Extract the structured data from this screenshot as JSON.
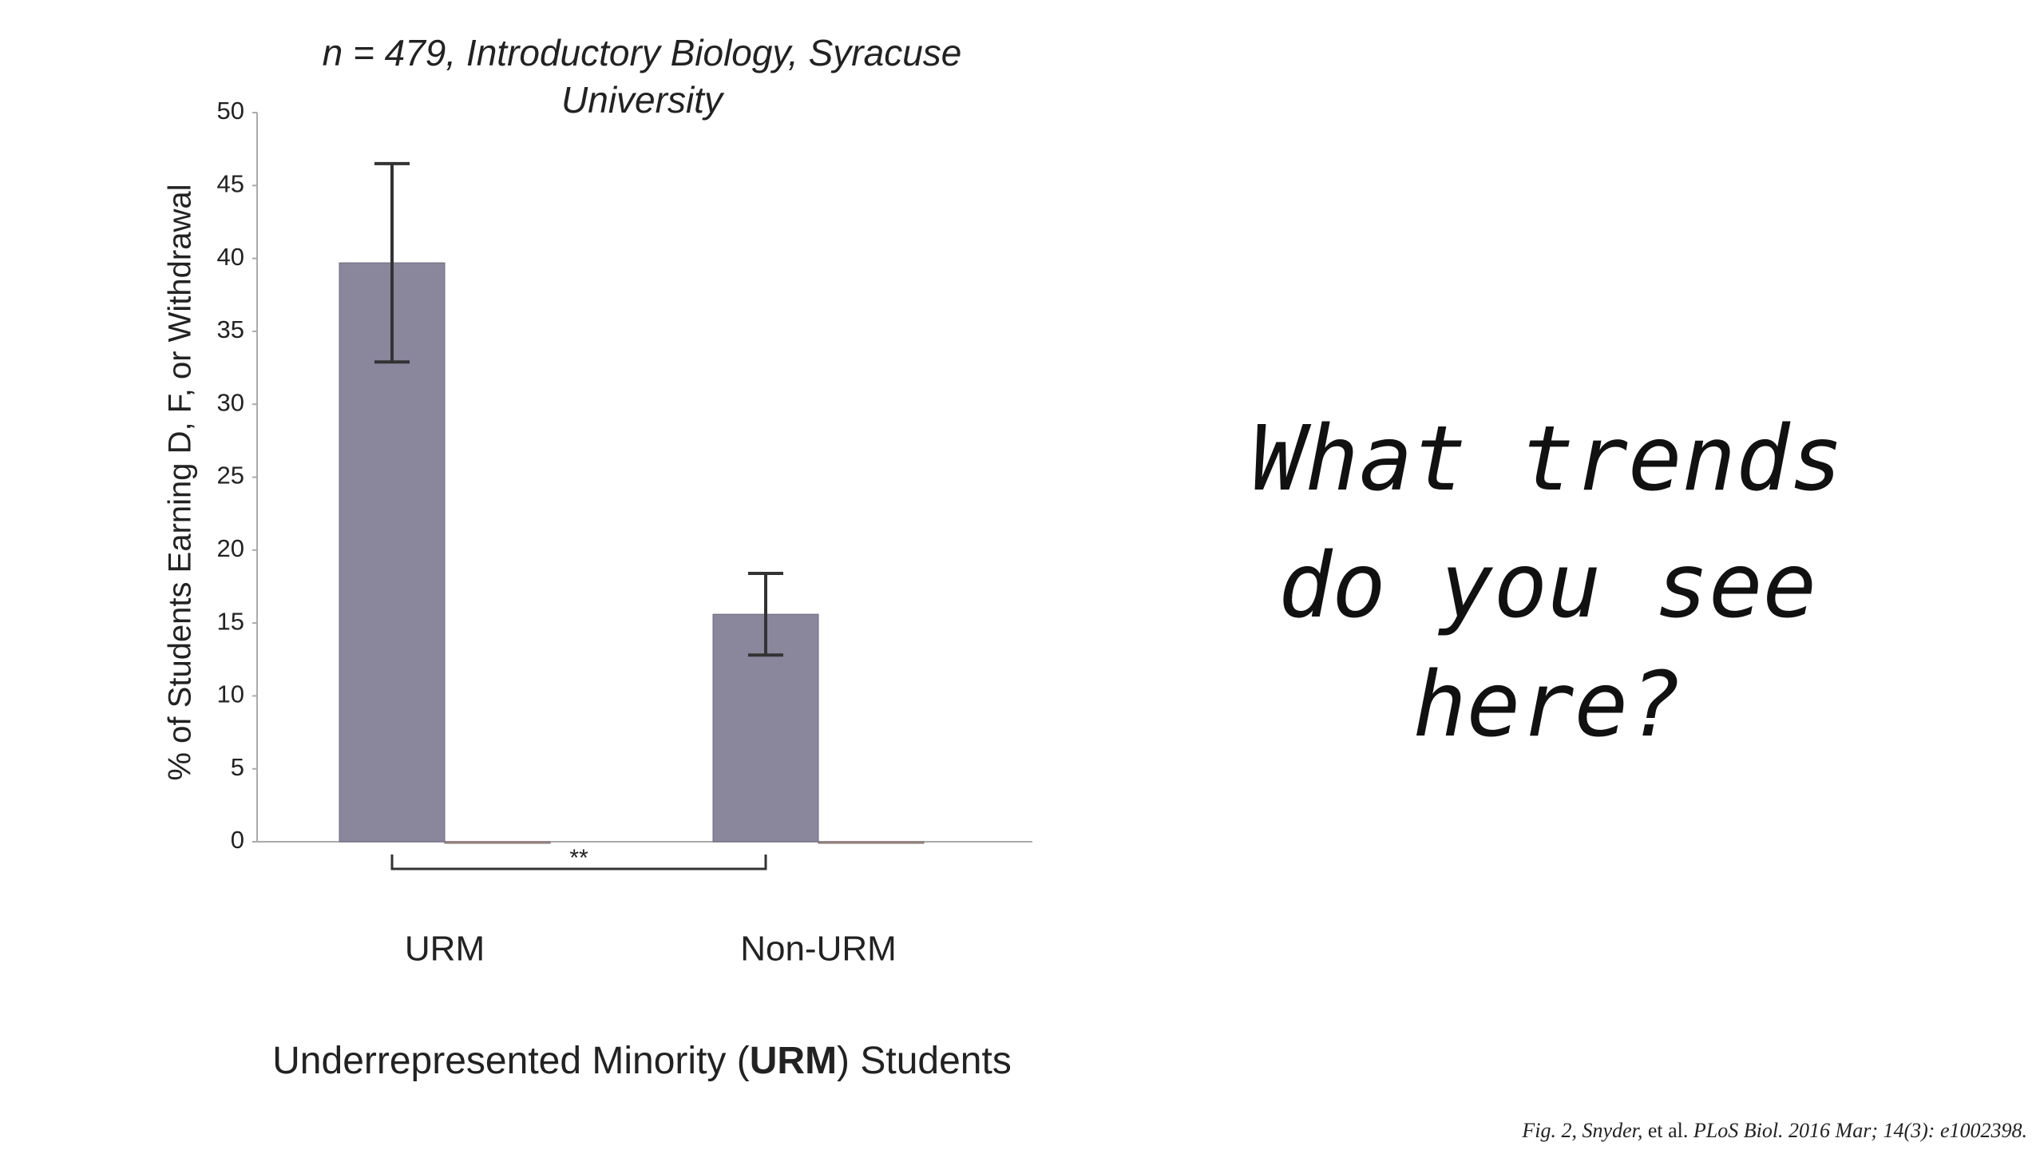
{
  "chart_data": {
    "type": "bar",
    "title": [
      "n = 479, Introductory Biology, Syracuse",
      "University"
    ],
    "categories": [
      "URM",
      "Non-URM"
    ],
    "series": [
      {
        "color": "#8a869c",
        "values": [
          39.7,
          15.6
        ],
        "errors": [
          6.8,
          2.8
        ]
      },
      {
        "color": "#c8956a",
        "values": [
          0,
          0
        ]
      }
    ],
    "y_label": "% of Students Earning D, F, or Withdrawal",
    "x_label": [
      "Underrepresented Minority (",
      "URM",
      ") Students"
    ],
    "annotation": "**",
    "ylim": [
      0,
      50
    ],
    "yticks": [
      0,
      5,
      10,
      15,
      20,
      25,
      30,
      35,
      40,
      45,
      50
    ]
  },
  "slide": {
    "question": [
      "What trends",
      "do you see",
      "here?"
    ],
    "citation": [
      "Fig. 2, Snyder,",
      " et al. ",
      "PLoS Biol. 2016 Mar; 14(3): e1002398."
    ]
  }
}
